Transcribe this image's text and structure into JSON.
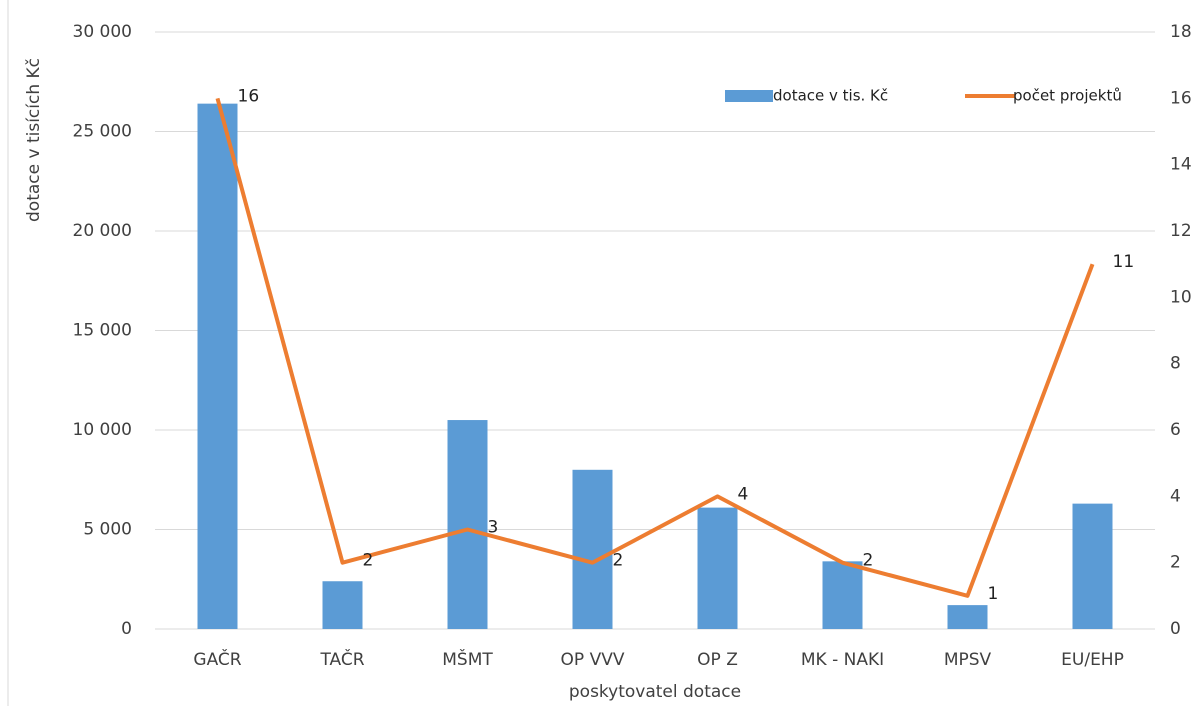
{
  "chart_data": {
    "type": "bar_line",
    "x_label": "poskytovatel dotace",
    "y_label": "dotace v tisících Kč",
    "categories": [
      "GAČR",
      "TAČR",
      "MŠMT",
      "OP VVV",
      "OP Z",
      "MK - NAKI",
      "MPSV",
      "EU/EHP"
    ],
    "series": [
      {
        "name": "dotace v tis. Kč",
        "color": "#5b9bd5",
        "values": [
          26400,
          2400,
          10500,
          8000,
          6100,
          3400,
          1200,
          6300
        ]
      },
      {
        "name": "počet projektů",
        "color": "#ed7d31",
        "axis": "y2",
        "values": [
          16,
          2,
          3,
          2,
          4,
          2,
          1,
          11
        ]
      }
    ],
    "ylim": [
      0,
      30000
    ],
    "yticks": [
      0,
      {
        "value": 5000,
        "label": "5 000"
      },
      {
        "value": 10000,
        "label": "10 000"
      },
      {
        "value": 15000,
        "label": "15 000"
      },
      {
        "value": 20000,
        "label": "20 000"
      },
      {
        "value": 25000,
        "label": "25 000"
      },
      {
        "value": 30000,
        "label": "30 000"
      }
    ],
    "y2lim": [
      0,
      18
    ],
    "y2ticks": [
      0,
      2,
      4,
      6,
      8,
      10,
      12,
      14,
      16,
      18
    ],
    "grid": true,
    "legend": "top-right"
  }
}
